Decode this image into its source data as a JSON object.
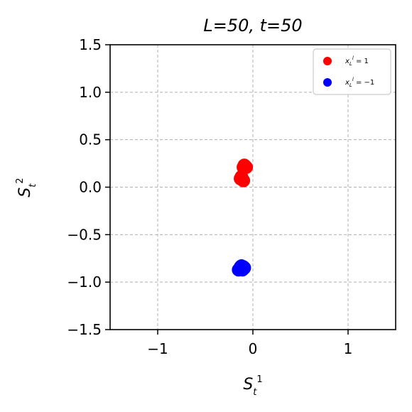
{
  "chart_data": {
    "type": "scatter",
    "title": "L=50, t=50",
    "xlabel": "S_t^1",
    "ylabel": "S_t^2",
    "xlim": [
      -1.5,
      1.5
    ],
    "ylim": [
      -1.5,
      1.5
    ],
    "xticks": [
      -1,
      0,
      1
    ],
    "yticks": [
      -1.5,
      -1.0,
      -0.5,
      0.0,
      0.5,
      1.0,
      1.5
    ],
    "xtick_labels": [
      "−1",
      "0",
      "1"
    ],
    "ytick_labels": [
      "−1.5",
      "−1.0",
      "−0.5",
      "0.0",
      "0.5",
      "1.0",
      "1.5"
    ],
    "grid": true,
    "legend_position": "top-right",
    "series": [
      {
        "name": "x_L^l = 1",
        "color": "#ff0000",
        "points": [
          [
            -0.09,
            0.22
          ],
          [
            -0.08,
            0.22
          ],
          [
            -0.1,
            0.21
          ],
          [
            -0.07,
            0.21
          ],
          [
            -0.09,
            0.23
          ],
          [
            -0.12,
            0.1
          ],
          [
            -0.11,
            0.08
          ],
          [
            -0.13,
            0.09
          ],
          [
            -0.1,
            0.07
          ],
          [
            -0.12,
            0.11
          ]
        ]
      },
      {
        "name": "x_L^l = −1",
        "color": "#0000ff",
        "points": [
          [
            -0.1,
            -0.84
          ],
          [
            -0.12,
            -0.85
          ],
          [
            -0.14,
            -0.86
          ],
          [
            -0.11,
            -0.87
          ],
          [
            -0.09,
            -0.85
          ],
          [
            -0.13,
            -0.84
          ],
          [
            -0.15,
            -0.87
          ],
          [
            -0.1,
            -0.86
          ],
          [
            -0.12,
            -0.83
          ]
        ]
      }
    ]
  }
}
